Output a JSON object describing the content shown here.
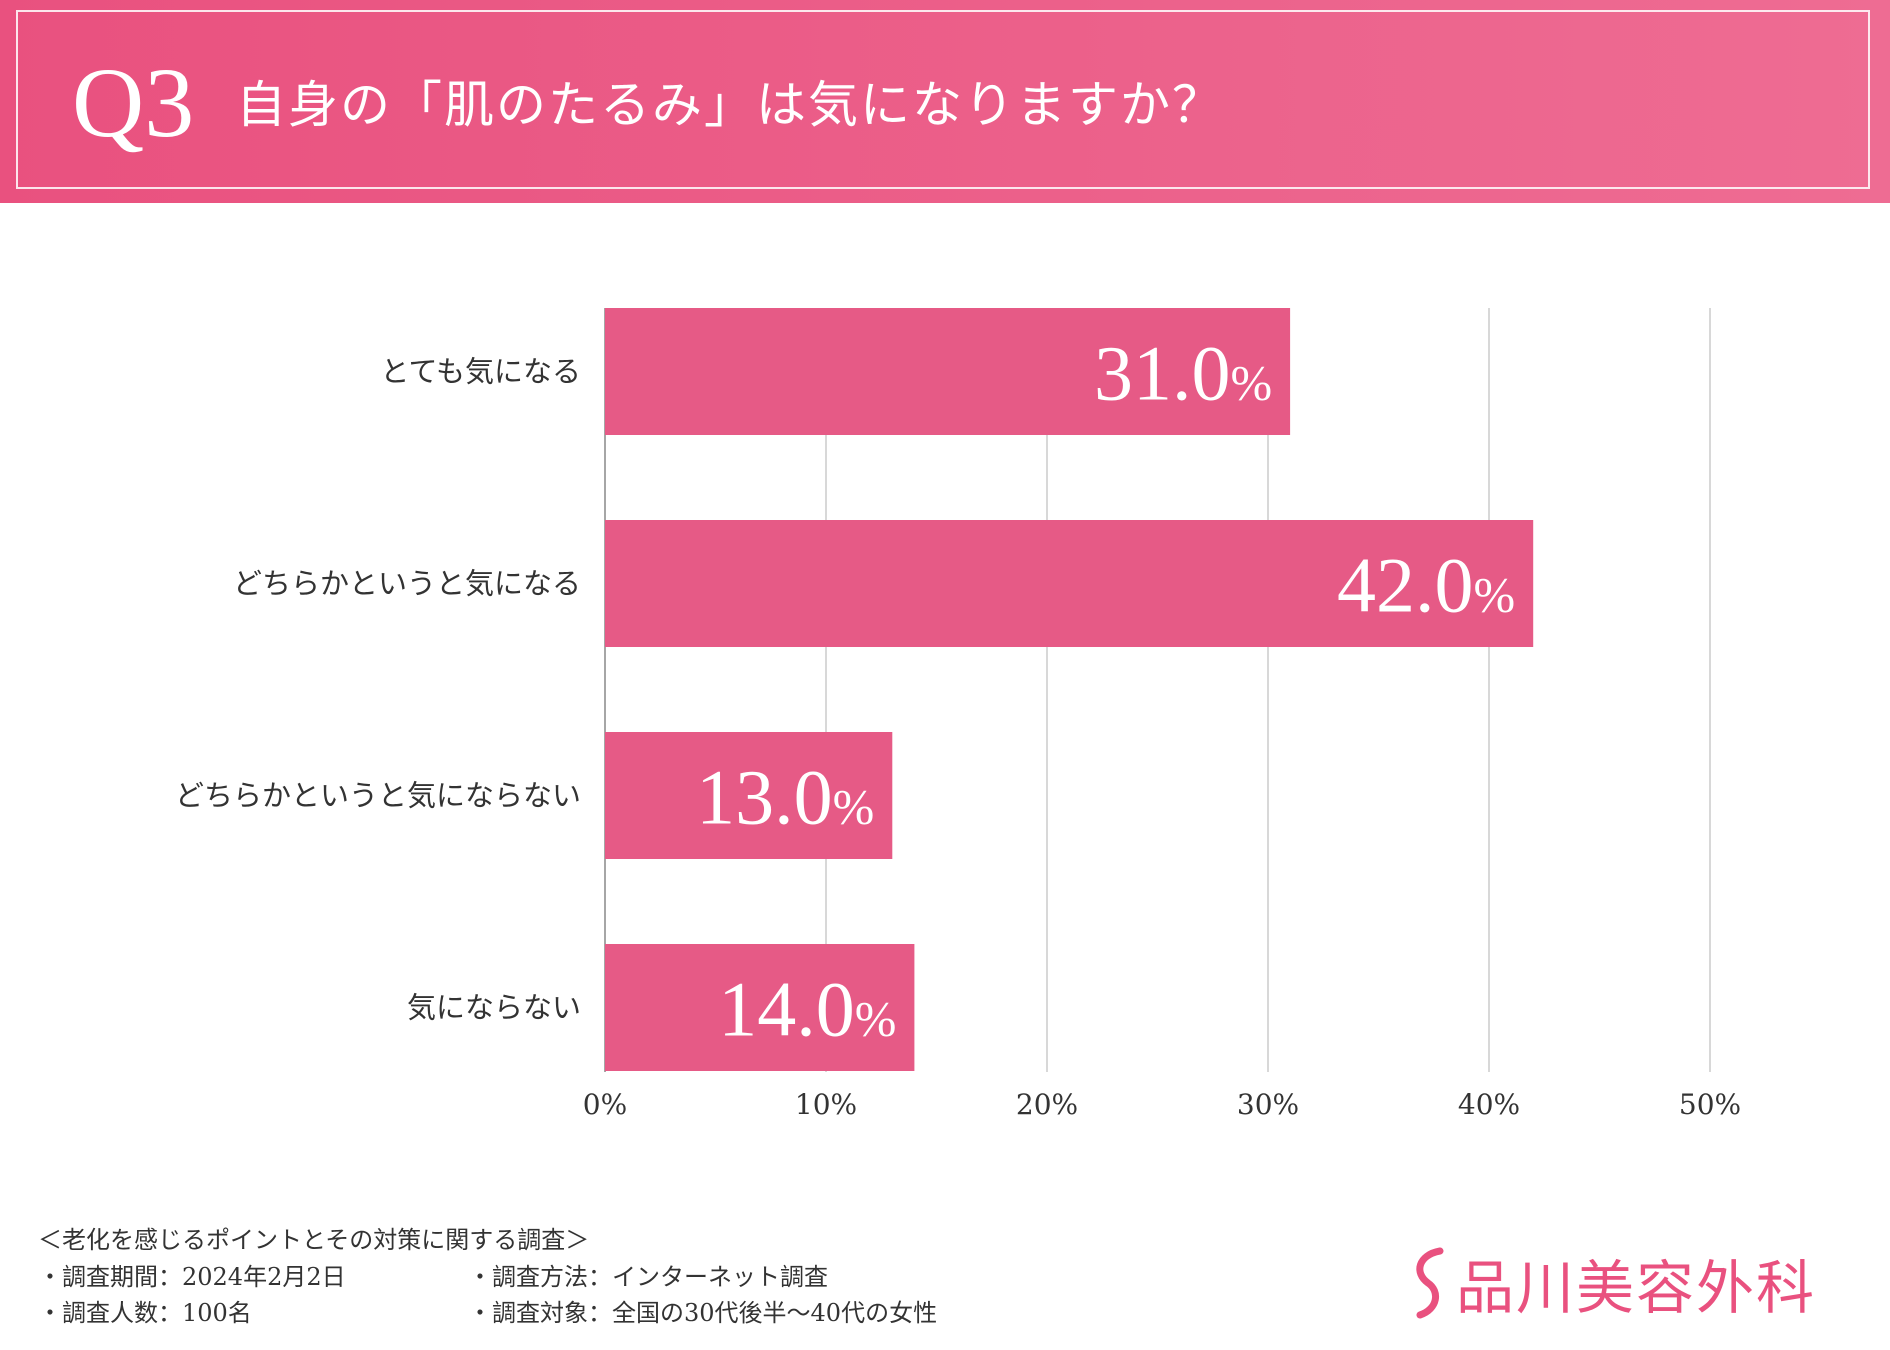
{
  "header": {
    "q_number": "Q3",
    "question": "自身の「肌のたるみ」は気になりますか？"
  },
  "chart_data": {
    "type": "bar",
    "orientation": "horizontal",
    "title": "自身の「肌のたるみ」は気になりますか？",
    "categories": [
      "とても気になる",
      "どちらかというと気になる",
      "どちらかというと気にならない",
      "気にならない"
    ],
    "values": [
      31.0,
      42.0,
      13.0,
      14.0
    ],
    "value_labels": [
      "31.0",
      "42.0",
      "13.0",
      "14.0"
    ],
    "value_unit": "%",
    "xlim": [
      0,
      50
    ],
    "ticks": [
      "0%",
      "10%",
      "20%",
      "30%",
      "40%",
      "50%"
    ],
    "grid": true,
    "bar_color": "#e65a86"
  },
  "footer": {
    "survey_title": "＜老化を感じるポイントとその対策に関する調査＞",
    "period": "・調査期間：2024年2月2日",
    "method": "・調査方法：インターネット調査",
    "sample": "・調査人数：100名",
    "target": "・調査対象：全国の30代後半～40代の女性"
  },
  "brand": {
    "name": "品川美容外科",
    "color": "#e9517f",
    "icon": "s-swirl-logo-icon"
  }
}
